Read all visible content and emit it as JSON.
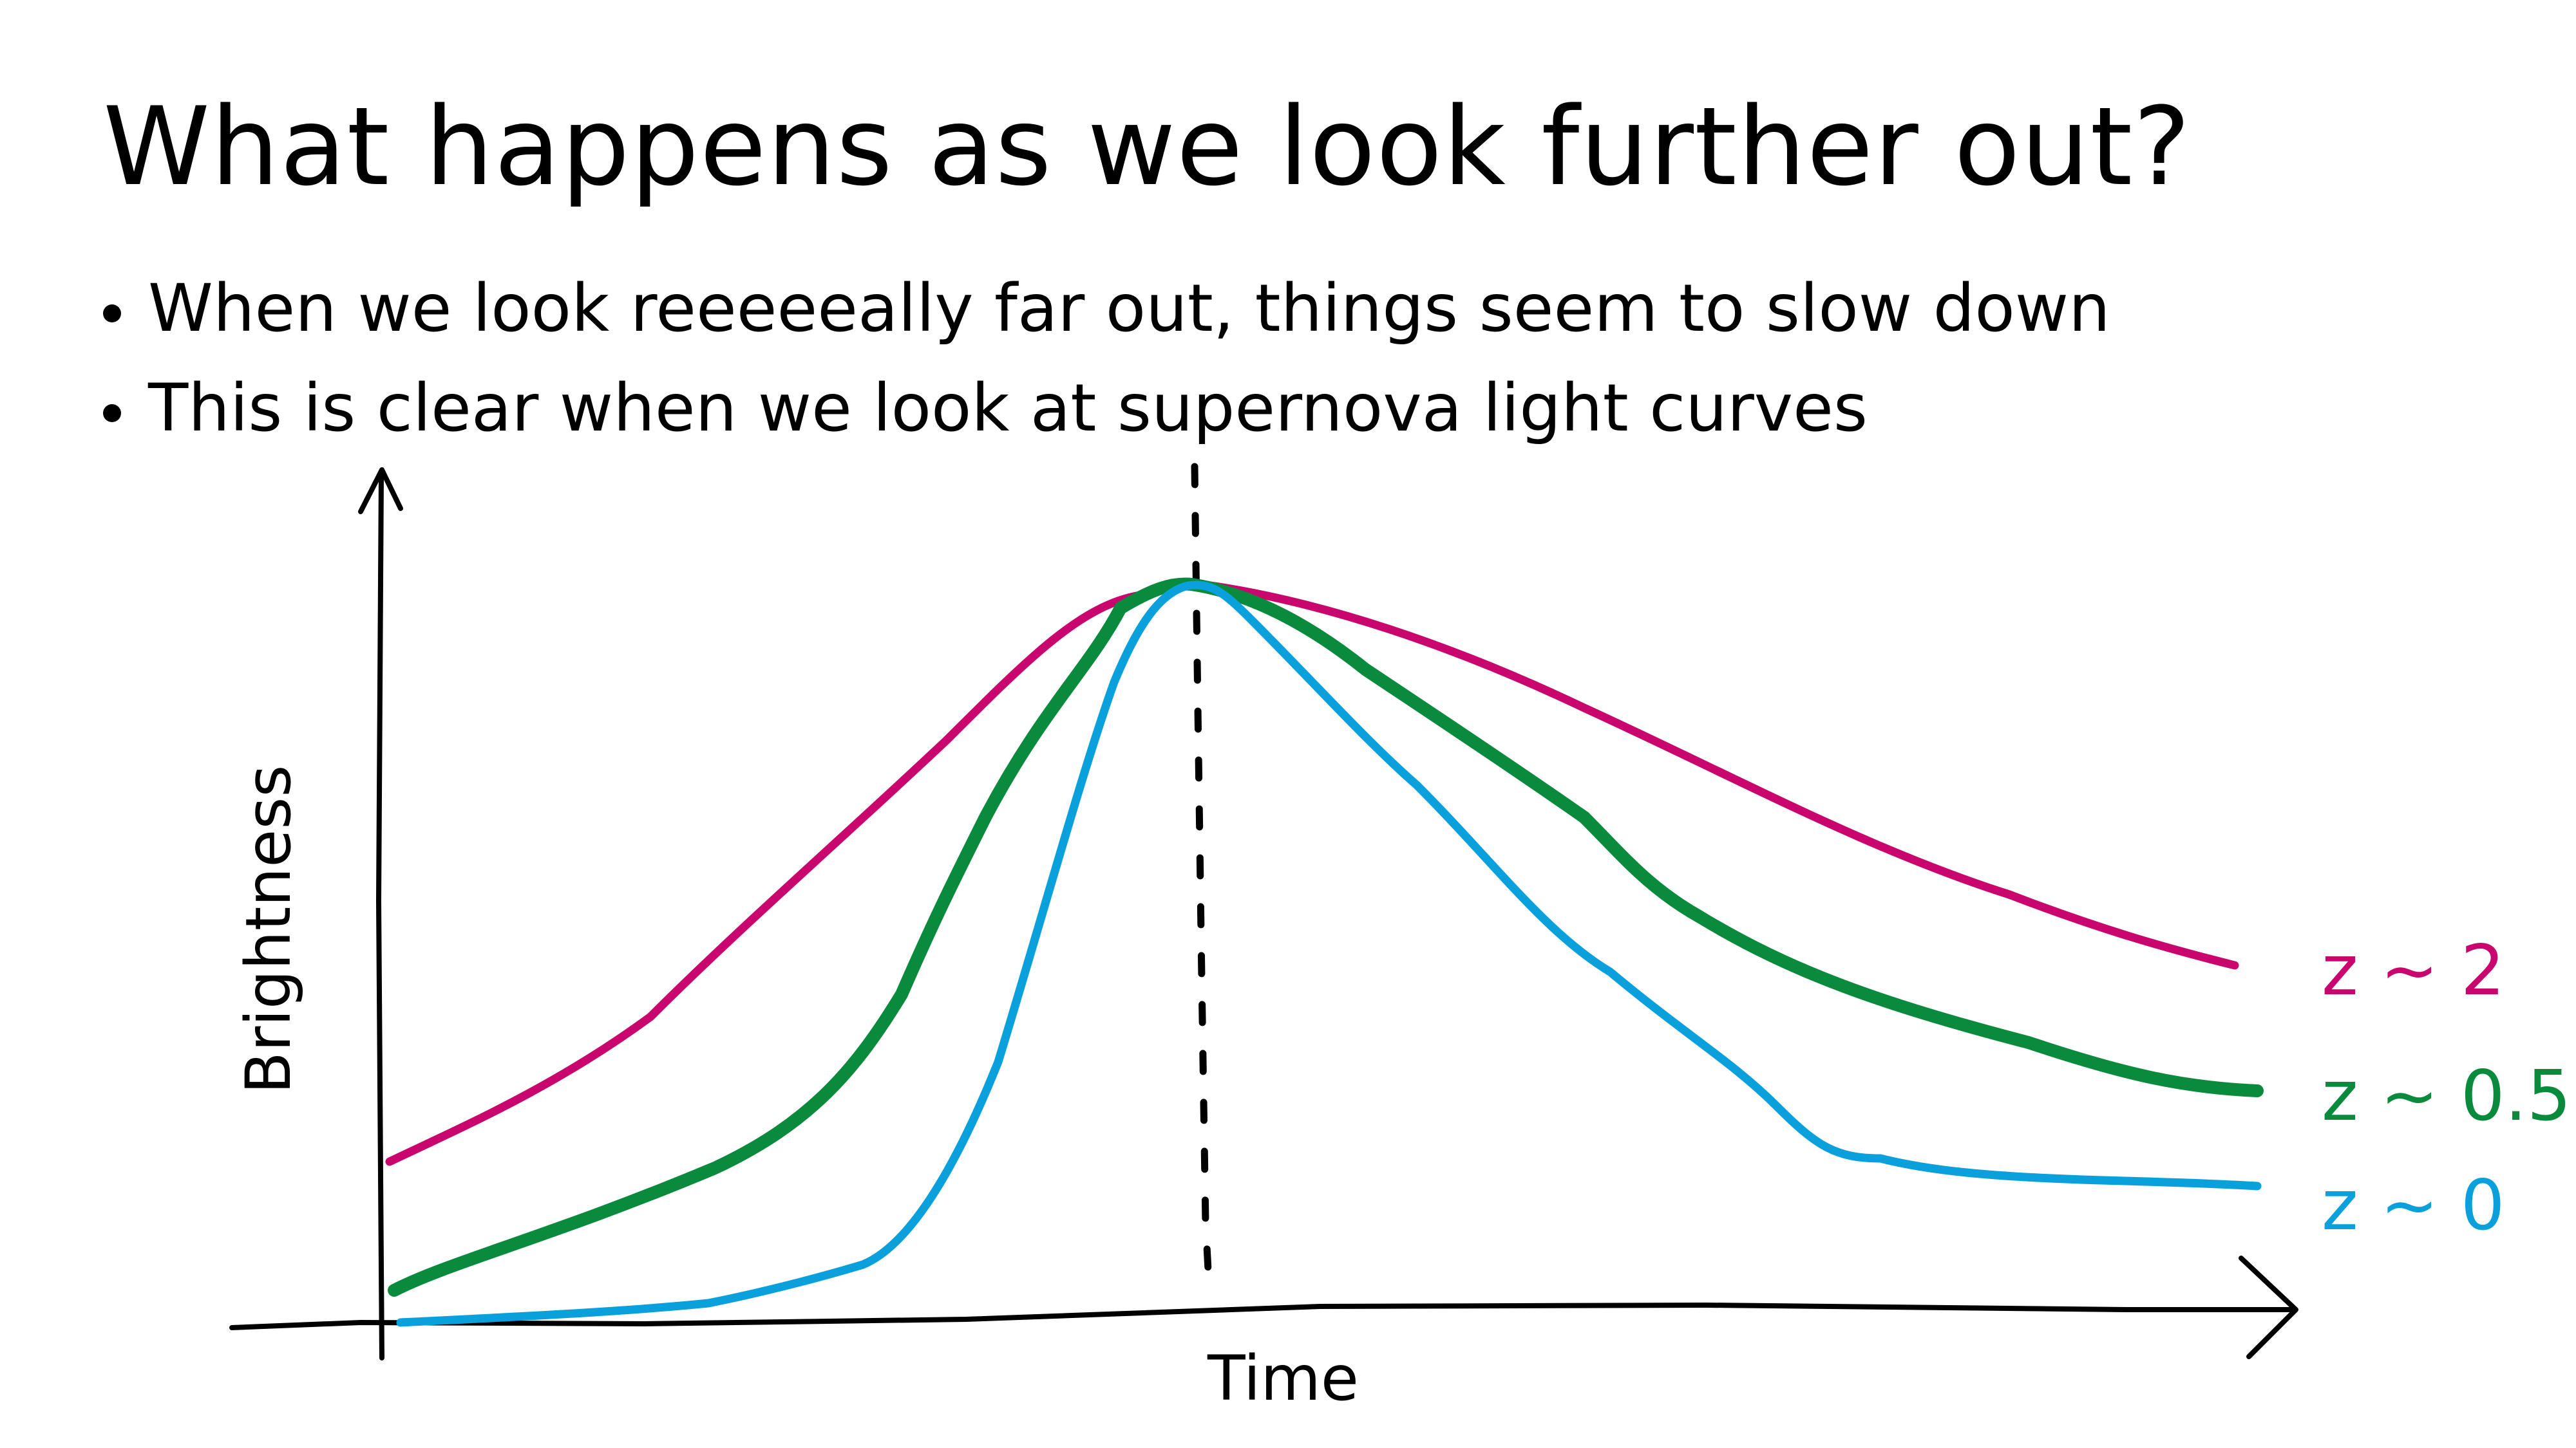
{
  "slide": {
    "title": "What happens as we look further out?",
    "bullets": [
      "When we look reeeeeally far out, things seem to slow down",
      "This is clear when we look at supernova light curves"
    ]
  },
  "diagram": {
    "xlabel": "Time",
    "ylabel": "Brightness",
    "curves": [
      {
        "label": "z ~ 2",
        "color": "#c8066e"
      },
      {
        "label": "z ~ 0.5",
        "color": "#0a8a3c"
      },
      {
        "label": "z ~ 0",
        "color": "#0aa0dc"
      }
    ]
  }
}
